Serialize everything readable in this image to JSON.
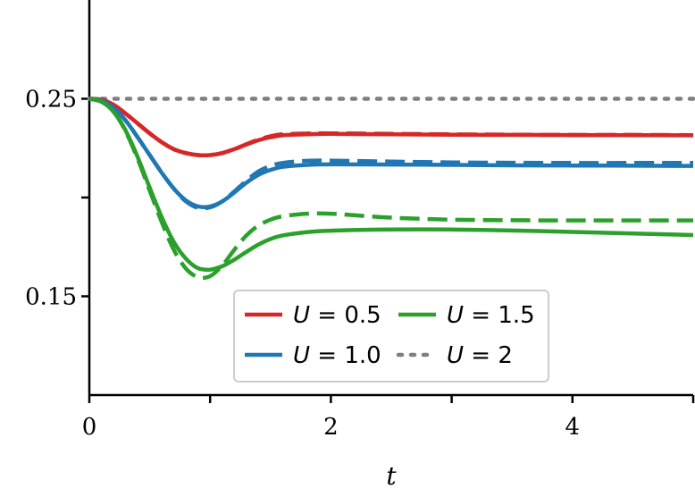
{
  "chart_data": {
    "type": "line",
    "title": "",
    "xlabel": "t",
    "ylabel": "",
    "xlim": [
      0,
      5
    ],
    "ylim": [
      0.1,
      0.3
    ],
    "x_ticks": [
      {
        "value": 0,
        "label": "0"
      },
      {
        "value": 1,
        "label": ""
      },
      {
        "value": 2,
        "label": "2"
      },
      {
        "value": 3,
        "label": ""
      },
      {
        "value": 4,
        "label": "4"
      },
      {
        "value": 5,
        "label": ""
      }
    ],
    "y_ticks": [
      {
        "value": 0.25,
        "label": "0.25"
      },
      {
        "value": 0.2,
        "label": ""
      },
      {
        "value": 0.15,
        "label": "0.15"
      }
    ],
    "grid": false,
    "legend": {
      "placement": "lower-center",
      "entries": [
        {
          "series": "u05",
          "var": "U",
          "value": " = 0.5"
        },
        {
          "series": "u15",
          "var": "U",
          "value": " = 1.5"
        },
        {
          "series": "u10",
          "var": "U",
          "value": " = 1.0"
        },
        {
          "series": "u2",
          "var": "U",
          "value": " = 2"
        }
      ]
    },
    "series": [
      {
        "id": "u05",
        "name": "U = 0.5",
        "color": "#d62728",
        "style": "solid",
        "x": [
          0,
          0.1,
          0.2,
          0.3,
          0.4,
          0.5,
          0.6,
          0.7,
          0.8,
          0.9,
          1.0,
          1.1,
          1.2,
          1.3,
          1.4,
          1.5,
          1.6,
          1.8,
          2.0,
          2.5,
          3,
          3.5,
          4,
          4.5,
          5
        ],
        "y": [
          0.25,
          0.2495,
          0.247,
          0.2425,
          0.2375,
          0.2325,
          0.228,
          0.2245,
          0.2225,
          0.2215,
          0.2215,
          0.2225,
          0.2245,
          0.2268,
          0.229,
          0.2305,
          0.2315,
          0.232,
          0.2322,
          0.232,
          0.2318,
          0.2317,
          0.2316,
          0.2316,
          0.2315
        ]
      },
      {
        "id": "u05d",
        "name": "",
        "color": "#d62728",
        "style": "dashed",
        "x": [
          0,
          0.1,
          0.2,
          0.3,
          0.4,
          0.5,
          0.6,
          0.7,
          0.8,
          0.9,
          1.0,
          1.1,
          1.2,
          1.3,
          1.4,
          1.5,
          1.6,
          1.8,
          2.0,
          2.5,
          3,
          3.5,
          4,
          4.5,
          5
        ],
        "y": [
          0.25,
          0.2495,
          0.247,
          0.2425,
          0.2375,
          0.2325,
          0.228,
          0.2245,
          0.2225,
          0.2215,
          0.2215,
          0.2225,
          0.2245,
          0.227,
          0.2293,
          0.231,
          0.232,
          0.2324,
          0.2325,
          0.2322,
          0.232,
          0.2318,
          0.2317,
          0.2317,
          0.2316
        ]
      },
      {
        "id": "u10",
        "name": "U = 1.0",
        "color": "#1f77b4",
        "style": "solid",
        "x": [
          0,
          0.1,
          0.2,
          0.3,
          0.4,
          0.5,
          0.6,
          0.7,
          0.8,
          0.9,
          1.0,
          1.1,
          1.2,
          1.3,
          1.4,
          1.5,
          1.6,
          1.8,
          2.0,
          2.5,
          3,
          3.5,
          4,
          4.5,
          5
        ],
        "y": [
          0.25,
          0.249,
          0.2455,
          0.239,
          0.2305,
          0.2215,
          0.2125,
          0.2045,
          0.1985,
          0.1955,
          0.1955,
          0.198,
          0.2025,
          0.2075,
          0.2115,
          0.214,
          0.2155,
          0.2165,
          0.2168,
          0.2167,
          0.2165,
          0.2163,
          0.2162,
          0.2161,
          0.216
        ]
      },
      {
        "id": "u10d",
        "name": "",
        "color": "#1f77b4",
        "style": "dashed",
        "x": [
          0,
          0.1,
          0.2,
          0.3,
          0.4,
          0.5,
          0.6,
          0.7,
          0.8,
          0.9,
          1.0,
          1.1,
          1.2,
          1.3,
          1.4,
          1.5,
          1.6,
          1.8,
          2.0,
          2.5,
          3,
          3.5,
          4,
          4.5,
          5
        ],
        "y": [
          0.25,
          0.249,
          0.2455,
          0.239,
          0.2305,
          0.2215,
          0.2125,
          0.2045,
          0.198,
          0.1948,
          0.195,
          0.198,
          0.203,
          0.2085,
          0.2132,
          0.216,
          0.2175,
          0.2186,
          0.2187,
          0.2182,
          0.2178,
          0.2176,
          0.2175,
          0.2175,
          0.2175
        ]
      },
      {
        "id": "u15",
        "name": "U = 1.5",
        "color": "#2ca02c",
        "style": "solid",
        "x": [
          0,
          0.1,
          0.2,
          0.3,
          0.4,
          0.5,
          0.6,
          0.7,
          0.8,
          0.9,
          1.0,
          1.1,
          1.2,
          1.3,
          1.4,
          1.5,
          1.6,
          1.8,
          2.0,
          2.5,
          3,
          3.5,
          4,
          4.5,
          5
        ],
        "y": [
          0.25,
          0.2485,
          0.2435,
          0.234,
          0.2205,
          0.205,
          0.19,
          0.1775,
          0.169,
          0.1642,
          0.1635,
          0.1652,
          0.1685,
          0.1725,
          0.1762,
          0.179,
          0.1808,
          0.1825,
          0.1832,
          0.1838,
          0.1838,
          0.1833,
          0.1826,
          0.1818,
          0.181
        ]
      },
      {
        "id": "u15d",
        "name": "",
        "color": "#2ca02c",
        "style": "dashed",
        "x": [
          0,
          0.1,
          0.2,
          0.3,
          0.4,
          0.5,
          0.6,
          0.7,
          0.8,
          0.9,
          1.0,
          1.1,
          1.2,
          1.3,
          1.4,
          1.5,
          1.6,
          1.8,
          2.0,
          2.2,
          2.5,
          3,
          3.5,
          4,
          4.5,
          5
        ],
        "y": [
          0.25,
          0.2485,
          0.2435,
          0.2335,
          0.2195,
          0.2035,
          0.1875,
          0.1735,
          0.164,
          0.1597,
          0.1602,
          0.1655,
          0.1735,
          0.1808,
          0.1858,
          0.1888,
          0.1905,
          0.1918,
          0.1918,
          0.191,
          0.1898,
          0.1888,
          0.1885,
          0.1884,
          0.1884,
          0.1884
        ]
      },
      {
        "id": "u2",
        "name": "U = 2",
        "color": "#7f7f7f",
        "style": "dotted",
        "x": [
          0,
          5
        ],
        "y": [
          0.25,
          0.25
        ]
      }
    ]
  }
}
